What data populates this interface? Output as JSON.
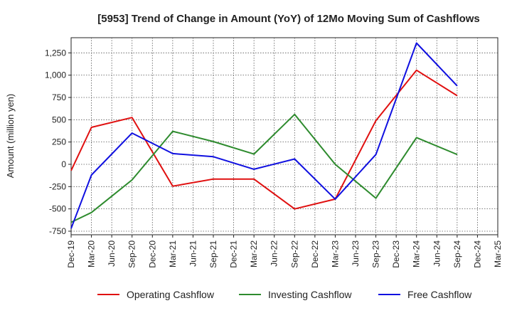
{
  "chart_data": {
    "type": "line",
    "title": "[5953]  Trend of Change in Amount (YoY) of 12Mo Moving Sum of Cashflows",
    "xlabel": "",
    "ylabel": "Amount (million yen)",
    "categories": [
      "Dec-19",
      "Mar-20",
      "Jun-20",
      "Sep-20",
      "Dec-20",
      "Mar-21",
      "Jun-21",
      "Sep-21",
      "Dec-21",
      "Mar-22",
      "Jun-22",
      "Sep-22",
      "Dec-22",
      "Mar-23",
      "Jun-23",
      "Sep-23",
      "Dec-23",
      "Mar-24",
      "Jun-24",
      "Sep-24",
      "Dec-24",
      "Mar-25"
    ],
    "yticks": [
      -750,
      -500,
      -250,
      0,
      250,
      500,
      750,
      1000,
      1250
    ],
    "ytick_labels": [
      "-750",
      "-500",
      "-250",
      "0",
      "250",
      "500",
      "750",
      "1,000",
      "1,250"
    ],
    "ylim": [
      -790,
      1420
    ],
    "grid": true,
    "legend_position": "bottom",
    "series": [
      {
        "name": "Operating Cashflow",
        "color": "#e01010",
        "points": [
          [
            0,
            -70
          ],
          [
            1,
            415
          ],
          [
            3,
            525
          ],
          [
            5,
            -245
          ],
          [
            7,
            -165
          ],
          [
            9,
            -165
          ],
          [
            11,
            -500
          ],
          [
            13,
            -390
          ],
          [
            15,
            490
          ],
          [
            17,
            1055
          ],
          [
            19,
            770
          ]
        ]
      },
      {
        "name": "Investing Cashflow",
        "color": "#2e8b2e",
        "points": [
          [
            0,
            -650
          ],
          [
            1,
            -540
          ],
          [
            3,
            -175
          ],
          [
            5,
            370
          ],
          [
            7,
            255
          ],
          [
            9,
            115
          ],
          [
            11,
            560
          ],
          [
            13,
            0
          ],
          [
            15,
            -380
          ],
          [
            17,
            300
          ],
          [
            19,
            110
          ]
        ]
      },
      {
        "name": "Free Cashflow",
        "color": "#1010e0",
        "points": [
          [
            0,
            -720
          ],
          [
            1,
            -120
          ],
          [
            3,
            350
          ],
          [
            5,
            120
          ],
          [
            7,
            85
          ],
          [
            9,
            -55
          ],
          [
            11,
            60
          ],
          [
            13,
            -390
          ],
          [
            15,
            110
          ],
          [
            17,
            1360
          ],
          [
            19,
            880
          ]
        ]
      }
    ]
  }
}
